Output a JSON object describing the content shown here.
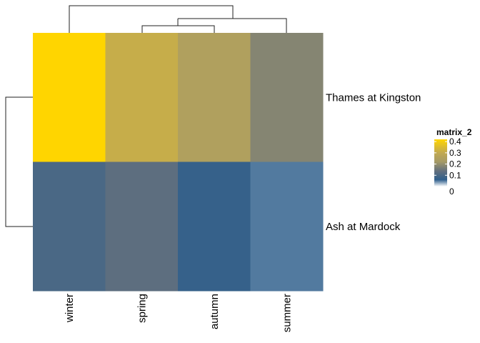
{
  "chart_data": {
    "type": "heatmap",
    "title": "",
    "xlabel": "",
    "ylabel": "",
    "columns": [
      "winter",
      "spring",
      "autumn",
      "summer"
    ],
    "rows": [
      "Thames at Kingston",
      "Ash at Mardock"
    ],
    "values": [
      [
        0.42,
        0.31,
        0.25,
        0.18
      ],
      [
        0.1,
        0.13,
        0.07,
        0.05
      ]
    ],
    "legend": {
      "title": "matrix_2",
      "placement": "right",
      "ticks": [
        0.4,
        0.3,
        0.2,
        0.1,
        0
      ],
      "tick_labels": [
        "0.4",
        "0.3",
        "0.2",
        "0.1",
        "0"
      ],
      "range": [
        0,
        0.42
      ],
      "color_stops": [
        {
          "value": 0.0,
          "color": "#ffffff"
        },
        {
          "value": 0.06,
          "color": "#2f5f8c"
        },
        {
          "value": 0.14,
          "color": "#64707d"
        },
        {
          "value": 0.22,
          "color": "#a59a66"
        },
        {
          "value": 0.3,
          "color": "#c1a951"
        },
        {
          "value": 0.42,
          "color": "#ffd500"
        }
      ]
    },
    "row_dendrogram": true,
    "column_dendrogram": true
  }
}
